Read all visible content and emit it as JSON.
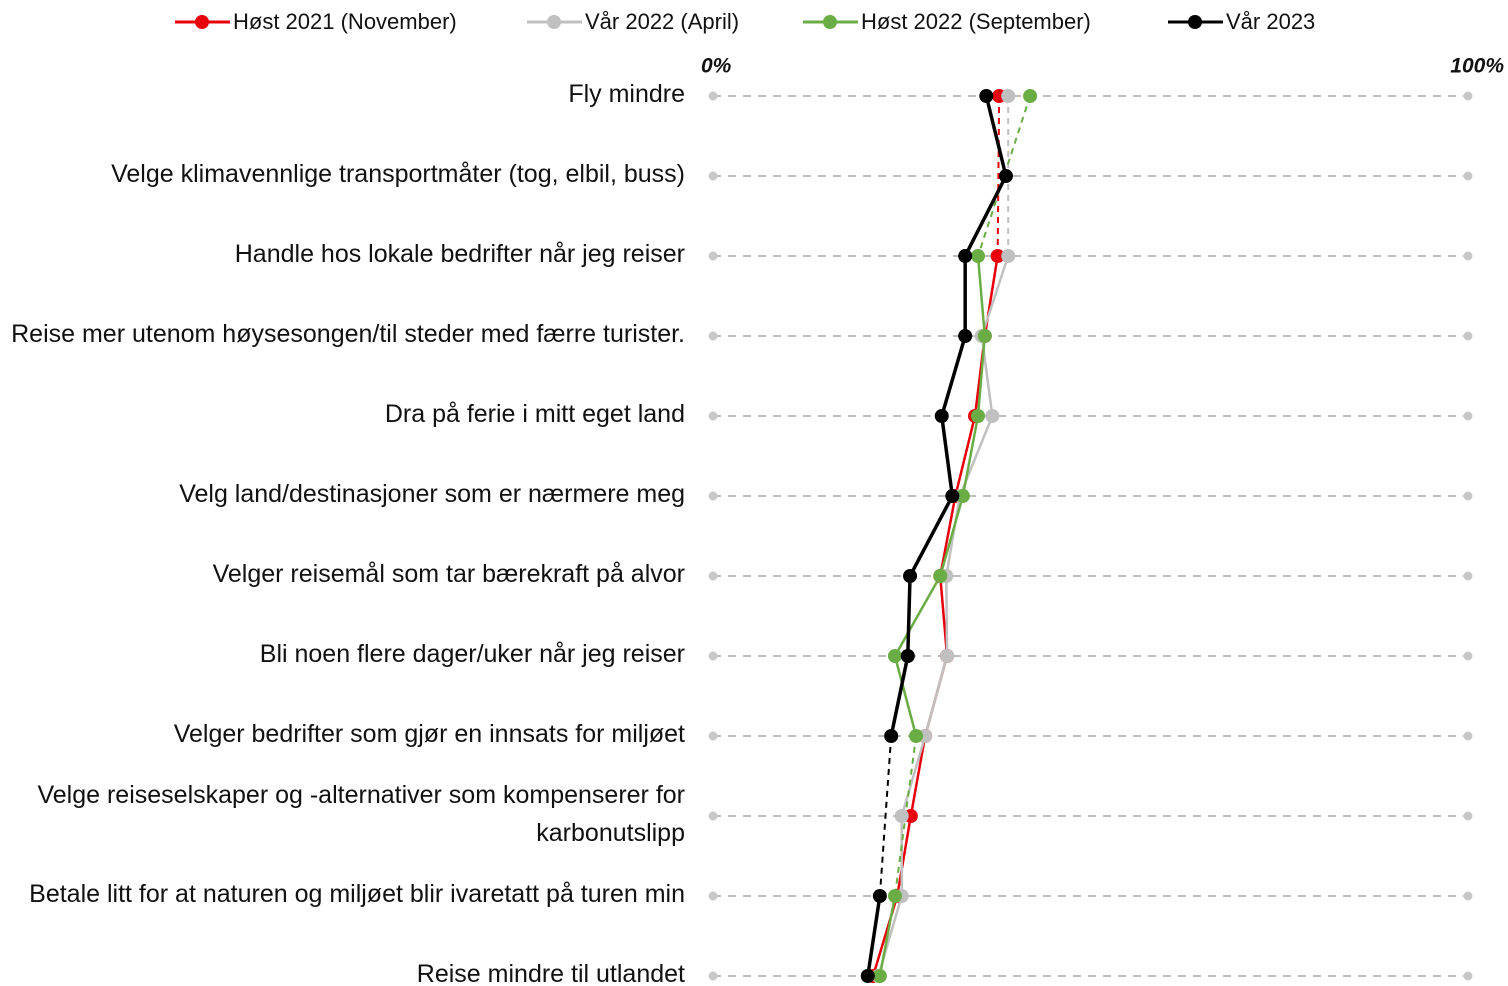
{
  "chart_data": {
    "type": "line",
    "categories": [
      "Fly mindre",
      "Velge klimavennlige transportmåter (tog, elbil, buss)",
      "Handle hos lokale bedrifter når jeg reiser",
      "Reise mer utenom høysesongen/til steder med færre turister.",
      "Dra på ferie i mitt eget land",
      "Velg land/destinasjoner som er nærmere meg",
      "Velger reisemål som tar bærekraft på alvor",
      "Bli noen flere dager/uker når jeg reiser",
      "Velger bedrifter som gjør en innsats for miljøet",
      "Velge reiseselskaper og -alternativer som kompenserer for karbonutslipp",
      "Betale litt for at naturen og miljøet blir ivaretatt på turen min",
      "Reise mindre til utlandet"
    ],
    "series": [
      {
        "name": "Høst 2021 (November)",
        "color": "#e8000b",
        "values": [
          37.9,
          null,
          37.7,
          36.0,
          34.7,
          32.1,
          30.1,
          31.0,
          28.1,
          26.2,
          24.4,
          21.2
        ]
      },
      {
        "name": "Vår 2022 (April)",
        "color": "#c0c0c0",
        "values": [
          39.1,
          null,
          39.1,
          35.6,
          37.0,
          32.7,
          30.9,
          31.0,
          28.1,
          25.0,
          25.0,
          21.9
        ]
      },
      {
        "name": "Høst 2022 (September)",
        "color": "#6aad45",
        "values": [
          42.0,
          null,
          35.1,
          36.0,
          35.1,
          33.1,
          30.1,
          24.1,
          26.9,
          null,
          24.1,
          22.1
        ]
      },
      {
        "name": "Vår 2023",
        "color": "#000000",
        "values": [
          36.2,
          38.8,
          33.4,
          33.4,
          30.3,
          31.7,
          26.1,
          25.8,
          23.6,
          null,
          22.1,
          20.5
        ]
      }
    ],
    "xlim": [
      0,
      100
    ],
    "xticks": [
      {
        "value": 0,
        "label": "0%"
      },
      {
        "value": 100,
        "label": "100%"
      }
    ]
  }
}
